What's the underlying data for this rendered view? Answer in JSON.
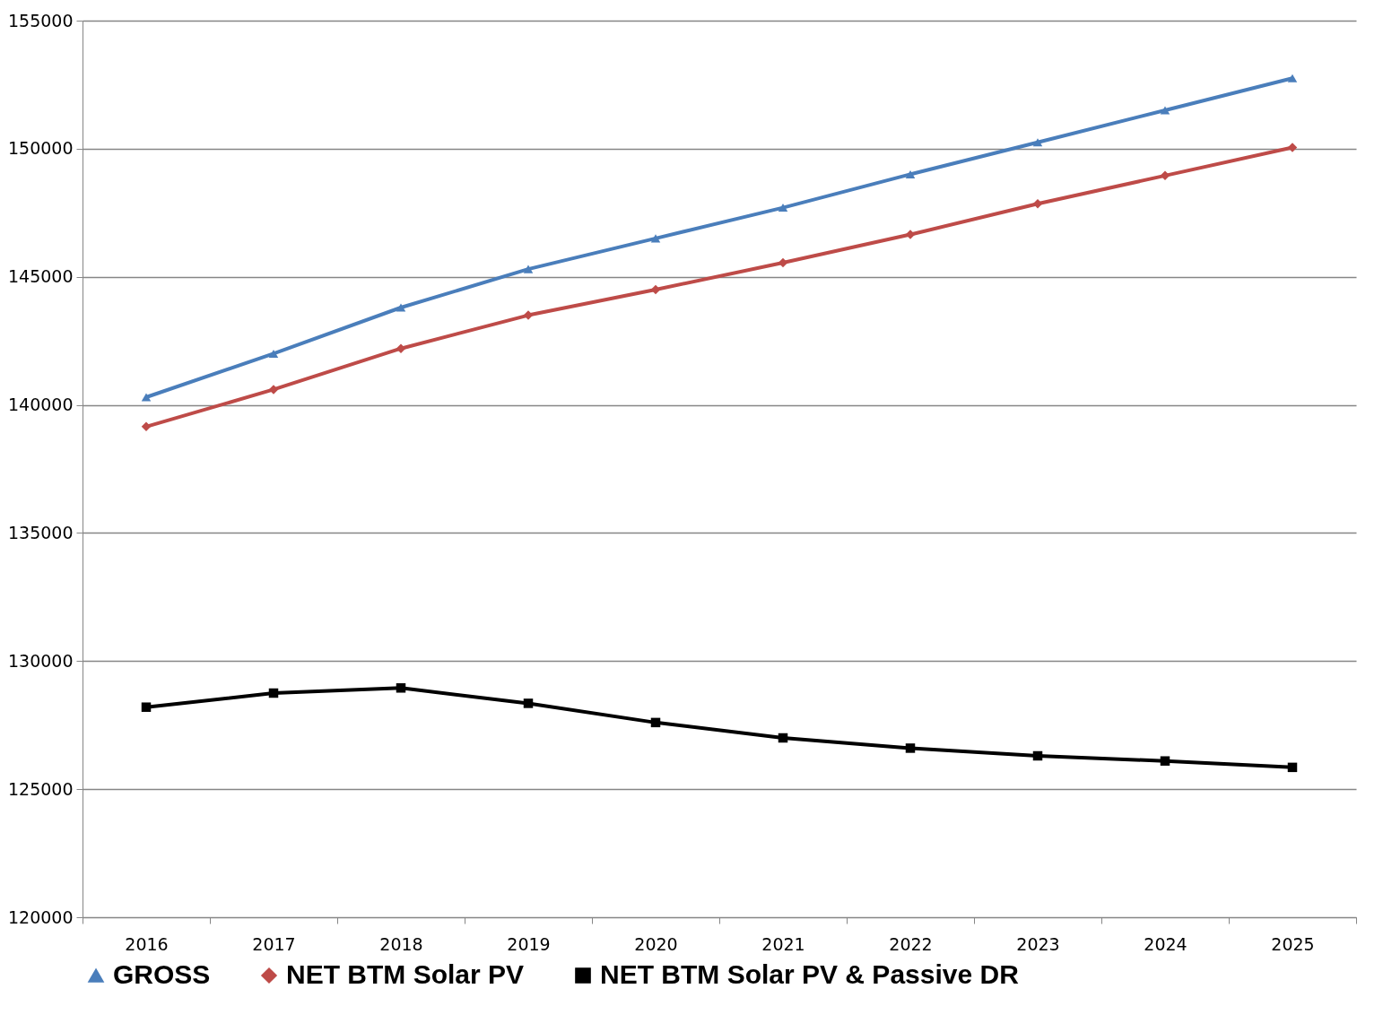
{
  "chart_data": {
    "type": "line",
    "categories": [
      "2016",
      "2017",
      "2018",
      "2019",
      "2020",
      "2021",
      "2022",
      "2023",
      "2024",
      "2025"
    ],
    "series": [
      {
        "name": "GROSS",
        "color": "#4a7ebb",
        "marker": "triangle",
        "values": [
          140300,
          142000,
          143800,
          145300,
          146500,
          147700,
          149000,
          150250,
          151500,
          152750
        ]
      },
      {
        "name": "NET BTM Solar PV",
        "color": "#be4b48",
        "marker": "diamond",
        "values": [
          139150,
          140600,
          142200,
          143500,
          144500,
          145550,
          146650,
          147850,
          148950,
          150050
        ]
      },
      {
        "name": "NET BTM Solar PV & Passive DR",
        "color": "#000000",
        "marker": "square",
        "values": [
          128200,
          128750,
          128950,
          128350,
          127600,
          127000,
          126600,
          126300,
          126100,
          125850
        ]
      }
    ],
    "ylim": [
      120000,
      155000
    ],
    "yticks": [
      120000,
      125000,
      130000,
      135000,
      140000,
      145000,
      150000,
      155000
    ],
    "grid": "y",
    "legend": "bottom",
    "line_style": "solid"
  }
}
